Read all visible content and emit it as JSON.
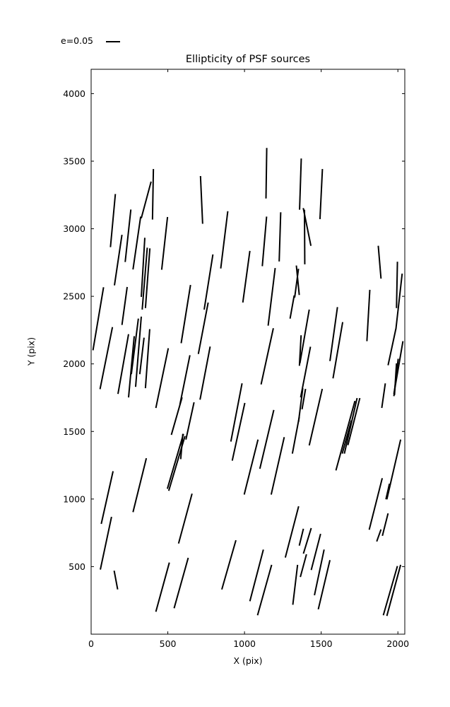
{
  "chart_data": {
    "type": "scatter",
    "subtype": "whisker-segments (PSF ellipticity sticks)",
    "title": "Ellipticity of PSF sources",
    "xlabel": "X (pix)",
    "ylabel": "Y (pix)",
    "xlim": [
      0,
      2045
    ],
    "ylim": [
      0,
      4180
    ],
    "xticks": [
      0,
      500,
      1000,
      1500,
      2000
    ],
    "xtick_labels": [
      "0",
      "500",
      "1000",
      "1500",
      "2000"
    ],
    "yticks": [
      500,
      1000,
      1500,
      2000,
      2500,
      3000,
      3500,
      4000
    ],
    "ytick_labels": [
      "500",
      "1000",
      "1500",
      "2000",
      "2500",
      "3000",
      "3500",
      "4000"
    ],
    "grid": false,
    "legend": {
      "label": "e=0.05",
      "position": "top-left-above-axes"
    },
    "line_color": "#000000",
    "line_width": 2,
    "segments": [
      [
        406,
        3442,
        400,
        3068
      ],
      [
        391,
        3349,
        327,
        3078
      ],
      [
        1145,
        3598,
        1140,
        3224
      ],
      [
        1370,
        3520,
        1359,
        3141
      ],
      [
        713,
        3390,
        727,
        3037
      ],
      [
        1508,
        3442,
        1492,
        3071
      ],
      [
        158,
        3257,
        126,
        2864
      ],
      [
        201,
        2955,
        152,
        2581
      ],
      [
        259,
        3142,
        222,
        2754
      ],
      [
        323,
        3090,
        273,
        2699
      ],
      [
        350,
        2933,
        327,
        2496
      ],
      [
        498,
        3087,
        460,
        2697
      ],
      [
        81,
        2567,
        12,
        2101
      ],
      [
        366,
        2860,
        333,
        2402
      ],
      [
        383,
        2855,
        354,
        2413
      ],
      [
        891,
        3130,
        845,
        2706
      ],
      [
        1144,
        3090,
        1116,
        2723
      ],
      [
        1236,
        3122,
        1226,
        2758
      ],
      [
        1035,
        2836,
        989,
        2454
      ],
      [
        1200,
        2709,
        1154,
        2283
      ],
      [
        794,
        2810,
        737,
        2402
      ],
      [
        763,
        2454,
        699,
        2073
      ],
      [
        1352,
        2704,
        1327,
        2491
      ],
      [
        1324,
        2506,
        1297,
        2335
      ],
      [
        1338,
        2728,
        1357,
        2510
      ],
      [
        1391,
        3141,
        1393,
        2737
      ],
      [
        1383,
        3153,
        1433,
        2874
      ],
      [
        1872,
        2874,
        1890,
        2631
      ],
      [
        1997,
        2756,
        1991,
        2413
      ],
      [
        2028,
        2668,
        1987,
        2257
      ],
      [
        139,
        2272,
        58,
        1813
      ],
      [
        235,
        2569,
        201,
        2288
      ],
      [
        244,
        2220,
        175,
        1778
      ],
      [
        281,
        2205,
        244,
        1752
      ],
      [
        308,
        2335,
        262,
        1924
      ],
      [
        327,
        2350,
        290,
        1830
      ],
      [
        345,
        2194,
        317,
        1924
      ],
      [
        382,
        2257,
        354,
        1820
      ],
      [
        648,
        2584,
        587,
        2153
      ],
      [
        503,
        2116,
        422,
        1674
      ],
      [
        644,
        2064,
        579,
        1700
      ],
      [
        593,
        1752,
        523,
        1475
      ],
      [
        671,
        1716,
        618,
        1440
      ],
      [
        776,
        2128,
        710,
        1735
      ],
      [
        1188,
        2264,
        1108,
        1848
      ],
      [
        1369,
        2212,
        1358,
        1986
      ],
      [
        1380,
        1820,
        1352,
        1570
      ],
      [
        1357,
        1607,
        1312,
        1336
      ],
      [
        984,
        1856,
        911,
        1425
      ],
      [
        1002,
        1711,
        920,
        1284
      ],
      [
        1422,
        2402,
        1361,
        2004
      ],
      [
        1430,
        2127,
        1366,
        1752
      ],
      [
        1398,
        1815,
        1375,
        1664
      ],
      [
        1606,
        2420,
        1557,
        2021
      ],
      [
        1640,
        2309,
        1577,
        1893
      ],
      [
        1817,
        2548,
        1798,
        2168
      ],
      [
        1987,
        2260,
        1936,
        1990
      ],
      [
        2033,
        2168,
        1974,
        1778
      ],
      [
        2002,
        2038,
        1974,
        1761
      ],
      [
        1991,
        2004,
        1978,
        1770
      ],
      [
        1918,
        1856,
        1895,
        1674
      ],
      [
        1507,
        1815,
        1422,
        1397
      ],
      [
        143,
        1206,
        66,
        816
      ],
      [
        133,
        868,
        60,
        478
      ],
      [
        360,
        1302,
        273,
        903
      ],
      [
        598,
        1482,
        584,
        1295
      ],
      [
        602,
        1482,
        497,
        1076
      ],
      [
        612,
        1466,
        506,
        1061
      ],
      [
        658,
        1040,
        570,
        671
      ],
      [
        1088,
        1440,
        998,
        1033
      ],
      [
        1191,
        1659,
        1100,
        1224
      ],
      [
        1259,
        1458,
        1174,
        1033
      ],
      [
        1353,
        946,
        1266,
        567
      ],
      [
        1734,
        1747,
        1651,
        1336
      ],
      [
        1752,
        1747,
        1674,
        1399
      ],
      [
        1697,
        1581,
        1637,
        1336
      ],
      [
        1720,
        1726,
        1596,
        1212
      ],
      [
        2018,
        1440,
        1928,
        998
      ],
      [
        1898,
        1154,
        1813,
        773
      ],
      [
        1945,
        1113,
        1922,
        998
      ],
      [
        1936,
        894,
        1899,
        728
      ],
      [
        1890,
        775,
        1862,
        686
      ],
      [
        150,
        470,
        173,
        331
      ],
      [
        510,
        530,
        422,
        166
      ],
      [
        633,
        565,
        541,
        192
      ],
      [
        944,
        695,
        852,
        331
      ],
      [
        1123,
        626,
        1035,
        244
      ],
      [
        1177,
        513,
        1085,
        140
      ],
      [
        1384,
        780,
        1357,
        655
      ],
      [
        1346,
        513,
        1315,
        218
      ],
      [
        1435,
        785,
        1384,
        596
      ],
      [
        1496,
        742,
        1435,
        475
      ],
      [
        1519,
        626,
        1456,
        288
      ],
      [
        1557,
        548,
        1481,
        184
      ],
      [
        1404,
        591,
        1364,
        423
      ],
      [
        1997,
        504,
        1905,
        140
      ],
      [
        2018,
        513,
        1928,
        135
      ]
    ]
  }
}
